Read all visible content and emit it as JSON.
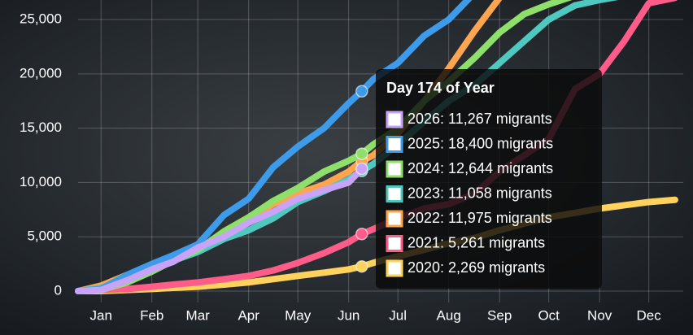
{
  "chart_data": {
    "type": "line",
    "x": [
      1,
      15,
      31,
      46,
      59,
      74,
      90,
      105,
      120,
      135,
      151,
      166,
      174,
      181,
      196,
      212,
      227,
      243,
      258,
      273,
      288,
      304,
      319,
      334,
      349,
      365
    ],
    "series": [
      {
        "color": "#c9a3f7",
        "values": [
          0,
          100,
          1000,
          2000,
          2700,
          4000,
          5000,
          6300,
          7300,
          8500,
          9300,
          10000,
          11267,
          null,
          null,
          null,
          null,
          null,
          null,
          null,
          null,
          null,
          null,
          null,
          null,
          null
        ]
      },
      {
        "color": "#3d9be9",
        "values": [
          0,
          200,
          1500,
          2500,
          3300,
          4300,
          7000,
          8500,
          11400,
          13300,
          15000,
          17300,
          18400,
          19500,
          21000,
          23500,
          25000,
          27500,
          null,
          null,
          null,
          null,
          null,
          null,
          null,
          null
        ]
      },
      {
        "color": "#8ee06a",
        "values": [
          0,
          100,
          800,
          1800,
          2800,
          3800,
          5500,
          6800,
          8300,
          9500,
          11000,
          12000,
          12644,
          13500,
          15000,
          17500,
          19300,
          21500,
          23800,
          25500,
          26400,
          27200,
          null,
          null,
          null,
          null
        ]
      },
      {
        "color": "#4fc9c0",
        "values": [
          0,
          300,
          1200,
          2200,
          2800,
          3600,
          4800,
          5600,
          6700,
          8200,
          9200,
          10300,
          11058,
          11700,
          13500,
          15600,
          17500,
          19000,
          21000,
          23000,
          25000,
          26300,
          26800,
          27200,
          null,
          null
        ]
      },
      {
        "color": "#ffa54f",
        "values": [
          0,
          500,
          1500,
          2000,
          2900,
          3700,
          5200,
          6700,
          8000,
          9000,
          9800,
          11000,
          11975,
          12500,
          14500,
          17500,
          20500,
          24000,
          27000,
          null,
          null,
          null,
          null,
          null,
          null,
          null
        ]
      },
      {
        "color": "#ff5c8a",
        "values": [
          0,
          100,
          200,
          400,
          600,
          800,
          1100,
          1400,
          1900,
          2600,
          3500,
          4500,
          5261,
          5700,
          6700,
          7600,
          8000,
          9000,
          11000,
          12500,
          14000,
          18600,
          20000,
          23000,
          26500,
          27000
        ]
      },
      {
        "color": "#ffd25e",
        "values": [
          0,
          0,
          100,
          200,
          300,
          400,
          600,
          800,
          1100,
          1400,
          1700,
          2000,
          2269,
          2600,
          3200,
          3800,
          4400,
          4900,
          5600,
          6200,
          6800,
          7200,
          7600,
          7900,
          8200,
          8400
        ]
      }
    ],
    "xlim": [
      1,
      370
    ],
    "ylim": [
      0,
      26800
    ],
    "xticks": [
      {
        "value": 15,
        "label": "Jan"
      },
      {
        "value": 46,
        "label": "Feb"
      },
      {
        "value": 74,
        "label": "Mar"
      },
      {
        "value": 105,
        "label": "Apr"
      },
      {
        "value": 135,
        "label": "May"
      },
      {
        "value": 166,
        "label": "Jun"
      },
      {
        "value": 196,
        "label": "Jul"
      },
      {
        "value": 227,
        "label": "Aug"
      },
      {
        "value": 258,
        "label": "Sep"
      },
      {
        "value": 288,
        "label": "Oct"
      },
      {
        "value": 319,
        "label": "Nov"
      },
      {
        "value": 349,
        "label": "Dec"
      }
    ],
    "yticks": [
      0,
      {
        "value": 5000,
        "label": "5,000"
      },
      {
        "value": 10000,
        "label": "10,000"
      },
      {
        "value": 15000,
        "label": "15,000"
      },
      {
        "value": 20000,
        "label": "20,000"
      },
      {
        "value": 25000,
        "label": "25,000"
      }
    ],
    "grid": true,
    "hover_index": 12,
    "tooltip": {
      "title": "Day 174 of Year",
      "items": [
        "2026: 11,267 migrants",
        "2025: 18,400 migrants",
        "2024: 12,644 migrants",
        "2023: 11,058 migrants",
        "2022: 11,975 migrants",
        "2021: 5,261 migrants",
        "2020: 2,269 migrants"
      ]
    }
  }
}
